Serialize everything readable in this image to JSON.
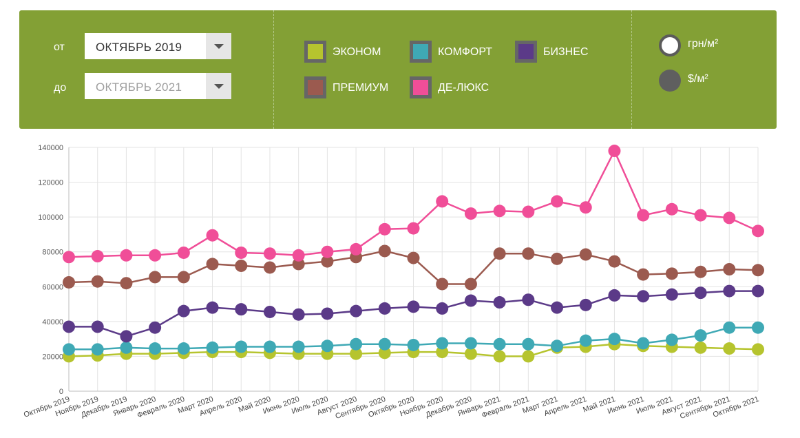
{
  "filters": {
    "from_label": "от",
    "from_value": "ОКТЯБРЬ 2019",
    "to_label": "до",
    "to_value": "ОКТЯБРЬ 2021"
  },
  "categories_legend": [
    {
      "label": "ЭКОНОМ",
      "color": "#b6c42e"
    },
    {
      "label": "КОМФОРТ",
      "color": "#3fa9b5"
    },
    {
      "label": "БИЗНЕС",
      "color": "#5b3a88"
    },
    {
      "label": "ПРЕМИУМ",
      "color": "#9b5a4f"
    },
    {
      "label": "ДЕ-ЛЮКС",
      "color": "#f04e98"
    }
  ],
  "units": [
    {
      "label": "грн/м²",
      "selected": true
    },
    {
      "label": "$/м²",
      "selected": false
    }
  ],
  "chart_data": {
    "type": "line",
    "categories": [
      "Октябрь 2019",
      "Ноябрь 2019",
      "Декабрь 2019",
      "Январь 2020",
      "Февраль 2020",
      "Март 2020",
      "Апрель 2020",
      "Май 2020",
      "Июнь 2020",
      "Июль 2020",
      "Август 2020",
      "Сентябрь 2020",
      "Октябрь 2020",
      "Ноябрь 2020",
      "Декабрь 2020",
      "Январь 2021",
      "Февраль 2021",
      "Март 2021",
      "Апрель 2021",
      "Май 2021",
      "Июнь 2021",
      "Июль 2021",
      "Август 2021",
      "Сентябрь 2021",
      "Октябрь 2021"
    ],
    "ylim": [
      0,
      140000
    ],
    "yticks": [
      "0",
      "20000",
      "40000",
      "60000",
      "80000",
      "100000",
      "120000",
      "140000"
    ],
    "grid": true,
    "series": [
      {
        "name": "ЭКОНОМ",
        "color": "#b6c42e",
        "values": [
          20000,
          20500,
          21500,
          21500,
          22000,
          22500,
          22500,
          22000,
          21500,
          21500,
          21500,
          22000,
          22500,
          22500,
          21500,
          20000,
          20000,
          25000,
          25500,
          27000,
          26000,
          25500,
          25000,
          24500,
          24000
        ]
      },
      {
        "name": "КОМФОРТ",
        "color": "#3fa9b5",
        "values": [
          24000,
          24000,
          25000,
          24500,
          24500,
          25000,
          25500,
          25500,
          25500,
          26000,
          27000,
          27000,
          26500,
          27500,
          27500,
          27000,
          27000,
          26000,
          29000,
          30000,
          27500,
          29500,
          32000,
          36500,
          36500
        ]
      },
      {
        "name": "БИЗНЕС",
        "color": "#5b3a88",
        "values": [
          37000,
          37000,
          31500,
          36500,
          46000,
          48000,
          47000,
          45500,
          44000,
          44500,
          46000,
          47500,
          48500,
          47500,
          52000,
          51000,
          52500,
          48000,
          49500,
          55000,
          54500,
          55500,
          56500,
          57500,
          57500
        ]
      },
      {
        "name": "ПРЕМИУМ",
        "color": "#9b5a4f",
        "values": [
          62500,
          63000,
          62000,
          65500,
          65500,
          73000,
          72000,
          71000,
          73000,
          74500,
          77000,
          80500,
          76500,
          61500,
          61500,
          79000,
          79000,
          76000,
          78500,
          74500,
          67000,
          67500,
          68500,
          70000,
          69500
        ]
      },
      {
        "name": "ДЕ-ЛЮКС",
        "color": "#f04e98",
        "values": [
          77000,
          77500,
          78000,
          78000,
          79500,
          89500,
          79500,
          79000,
          78000,
          80000,
          81500,
          93000,
          93500,
          109000,
          102000,
          103500,
          103000,
          109000,
          105500,
          138000,
          101000,
          104500,
          101000,
          99500,
          92000
        ]
      }
    ]
  }
}
